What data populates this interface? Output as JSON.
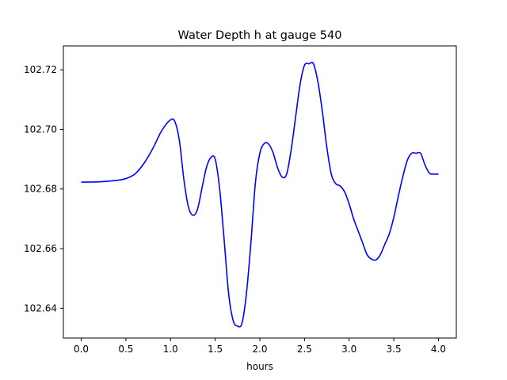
{
  "chart_data": {
    "type": "line",
    "title": "Water Depth h at gauge 540",
    "xlabel": "hours",
    "ylabel": "",
    "xlim": [
      -0.2,
      4.2
    ],
    "ylim": [
      102.63,
      102.728
    ],
    "xticks": [
      0.0,
      0.5,
      1.0,
      1.5,
      2.0,
      2.5,
      3.0,
      3.5,
      4.0
    ],
    "xtick_labels": [
      "0.0",
      "0.5",
      "1.0",
      "1.5",
      "2.0",
      "2.5",
      "3.0",
      "3.5",
      "4.0"
    ],
    "yticks": [
      102.64,
      102.66,
      102.68,
      102.7,
      102.72
    ],
    "ytick_labels": [
      "102.64",
      "102.66",
      "102.68",
      "102.70",
      "102.72"
    ],
    "grid": false,
    "series": [
      {
        "color": "#0000ff",
        "x": [
          0.0,
          0.2,
          0.4,
          0.5,
          0.6,
          0.7,
          0.8,
          0.9,
          1.0,
          1.05,
          1.1,
          1.15,
          1.2,
          1.25,
          1.3,
          1.35,
          1.4,
          1.45,
          1.5,
          1.55,
          1.6,
          1.65,
          1.7,
          1.75,
          1.8,
          1.85,
          1.9,
          1.95,
          2.0,
          2.05,
          2.1,
          2.15,
          2.2,
          2.25,
          2.3,
          2.35,
          2.4,
          2.45,
          2.5,
          2.55,
          2.6,
          2.65,
          2.7,
          2.75,
          2.8,
          2.85,
          2.9,
          2.95,
          3.0,
          3.05,
          3.1,
          3.15,
          3.2,
          3.25,
          3.3,
          3.35,
          3.4,
          3.45,
          3.5,
          3.55,
          3.6,
          3.65,
          3.7,
          3.75,
          3.8,
          3.85,
          3.9,
          3.95,
          4.0
        ],
        "y": [
          102.6823,
          102.6824,
          102.6829,
          102.6835,
          102.685,
          102.6885,
          102.6935,
          102.6995,
          102.7032,
          102.7025,
          102.696,
          102.683,
          102.674,
          102.6712,
          102.673,
          102.68,
          102.687,
          102.6905,
          102.69,
          102.68,
          102.663,
          102.645,
          102.636,
          102.634,
          102.635,
          102.645,
          102.662,
          102.682,
          102.692,
          102.6953,
          102.695,
          102.692,
          102.687,
          102.684,
          102.685,
          102.693,
          102.704,
          102.715,
          102.7215,
          102.722,
          102.722,
          102.716,
          102.706,
          102.694,
          102.685,
          102.6818,
          102.681,
          102.679,
          102.675,
          102.67,
          102.666,
          102.662,
          102.658,
          102.6565,
          102.6562,
          102.658,
          102.6615,
          102.665,
          102.6705,
          102.6775,
          102.684,
          102.6895,
          102.692,
          102.692,
          102.692,
          102.688,
          102.6853,
          102.685,
          102.685
        ]
      }
    ]
  }
}
